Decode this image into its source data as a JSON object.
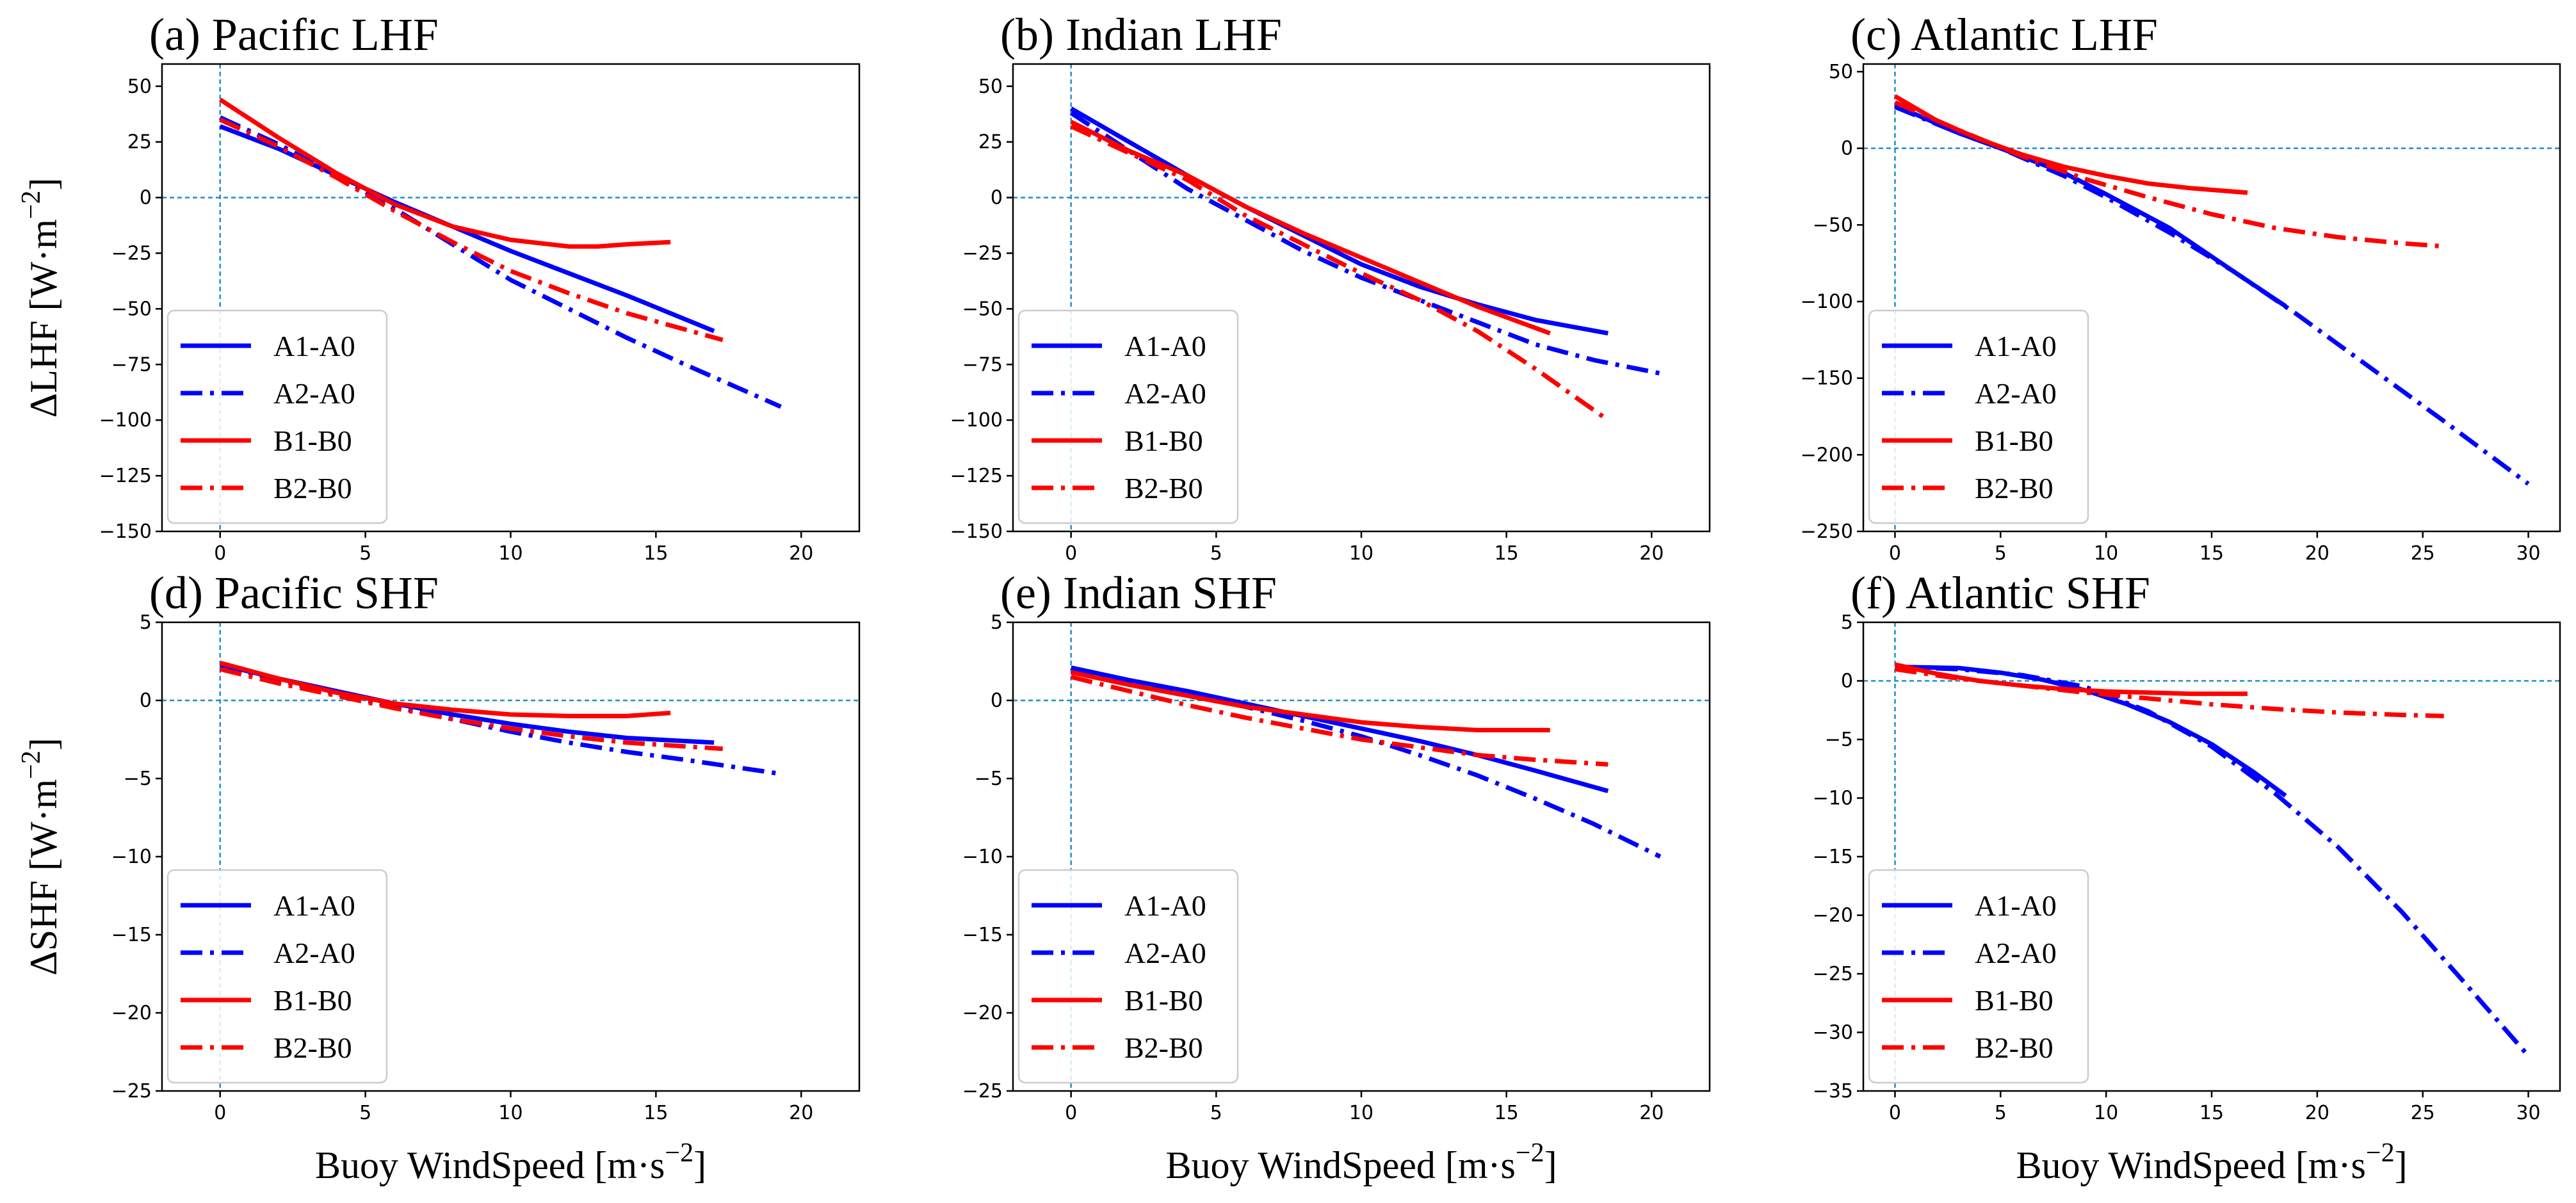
{
  "figure": {
    "xlabel_text": "Buoy WindSpeed [m·s",
    "xlabel_exp": "−2",
    "xlabel_close": "]"
  },
  "legend_labels": [
    "A1-A0",
    "A2-A0",
    "B1-B0",
    "B2-B0"
  ],
  "colors": {
    "blue": "#0000ff",
    "red": "#ff0000",
    "zero_line": "#1e90c8"
  },
  "chart_data": [
    {
      "type": "line",
      "panel": "a",
      "title": "(a) Pacific LHF",
      "ylabel": "ΔLHF [W·m",
      "ylabel_exp": "−2",
      "ylabel_close": "]",
      "xlim": [
        -2.0,
        22.0
      ],
      "ylim": [
        -150,
        60
      ],
      "xticks": [
        0,
        5,
        10,
        15,
        20
      ],
      "xtick_labels": [
        "0",
        "5",
        "10",
        "15",
        "20"
      ],
      "yticks": [
        50,
        25,
        0,
        -25,
        -50,
        -75,
        -100,
        -125,
        -150
      ],
      "ytick_labels": [
        "50",
        "25",
        "0",
        "−25",
        "−50",
        "−75",
        "−100",
        "−125",
        "−150"
      ],
      "series": [
        {
          "name": "A1-A0",
          "color": "blue",
          "style": "solid",
          "x": [
            0,
            2,
            4,
            6,
            8,
            10,
            12,
            14,
            17
          ],
          "y": [
            32,
            22,
            10,
            -2,
            -13,
            -24,
            -34,
            -44,
            -60
          ]
        },
        {
          "name": "A2-A0",
          "color": "blue",
          "style": "dashdot",
          "x": [
            0,
            2,
            4,
            6,
            8,
            10,
            12,
            14,
            16,
            19.3
          ],
          "y": [
            36,
            24,
            10,
            -5,
            -21,
            -37,
            -50,
            -63,
            -75,
            -94
          ]
        },
        {
          "name": "B1-B0",
          "color": "red",
          "style": "solid",
          "x": [
            0,
            2,
            4,
            6,
            8,
            10,
            12,
            13,
            14,
            15.5
          ],
          "y": [
            44,
            27,
            11,
            -3,
            -13,
            -19,
            -22,
            -22,
            -21,
            -20
          ]
        },
        {
          "name": "B2-B0",
          "color": "red",
          "style": "dashdot",
          "x": [
            0,
            2,
            4,
            6,
            8,
            10,
            12,
            14,
            17.3
          ],
          "y": [
            35,
            23,
            9,
            -6,
            -20,
            -33,
            -43,
            -52,
            -64
          ]
        }
      ]
    },
    {
      "type": "line",
      "panel": "b",
      "title": "(b) Indian LHF",
      "ylabel": "",
      "ylabel_exp": "",
      "ylabel_close": "",
      "xlim": [
        -2.0,
        22.0
      ],
      "ylim": [
        -150,
        60
      ],
      "xticks": [
        0,
        5,
        10,
        15,
        20
      ],
      "xtick_labels": [
        "0",
        "5",
        "10",
        "15",
        "20"
      ],
      "yticks": [
        50,
        25,
        0,
        -25,
        -50,
        -75,
        -100,
        -125,
        -150
      ],
      "ytick_labels": [
        "50",
        "25",
        "0",
        "−25",
        "−50",
        "−75",
        "−100",
        "−125",
        "−150"
      ],
      "series": [
        {
          "name": "A1-A0",
          "color": "blue",
          "style": "solid",
          "x": [
            0,
            2,
            4,
            6,
            8,
            10,
            12,
            14,
            16,
            18.5
          ],
          "y": [
            40,
            25,
            10,
            -4,
            -17,
            -30,
            -40,
            -48,
            -55,
            -61
          ]
        },
        {
          "name": "A2-A0",
          "color": "blue",
          "style": "dashdot",
          "x": [
            0,
            2,
            4,
            6,
            8,
            10,
            12,
            14,
            16,
            18,
            20.3
          ],
          "y": [
            38,
            21,
            4,
            -10,
            -24,
            -36,
            -46,
            -56,
            -66,
            -73,
            -79
          ]
        },
        {
          "name": "B1-B0",
          "color": "red",
          "style": "solid",
          "x": [
            0,
            2,
            4,
            6,
            8,
            10,
            12,
            14,
            16.5
          ],
          "y": [
            34,
            21,
            10,
            -4,
            -16,
            -27,
            -38,
            -49,
            -61
          ]
        },
        {
          "name": "B2-B0",
          "color": "red",
          "style": "dashdot",
          "x": [
            0,
            2,
            4,
            6,
            8,
            10,
            12,
            14,
            16,
            18.5
          ],
          "y": [
            32,
            20,
            8,
            -8,
            -21,
            -34,
            -46,
            -60,
            -77,
            -100
          ]
        }
      ]
    },
    {
      "type": "line",
      "panel": "c",
      "title": "(c) Atlantic LHF",
      "ylabel": "",
      "ylabel_exp": "",
      "ylabel_close": "",
      "xlim": [
        -1.5,
        31.5
      ],
      "ylim": [
        -250,
        55
      ],
      "xticks": [
        0,
        5,
        10,
        15,
        20,
        25,
        30
      ],
      "xtick_labels": [
        "0",
        "5",
        "10",
        "15",
        "20",
        "25",
        "30"
      ],
      "yticks": [
        50,
        0,
        -50,
        -100,
        -150,
        -200,
        -250
      ],
      "ytick_labels": [
        "50",
        "0",
        "−50",
        "−100",
        "−150",
        "−200",
        "−250"
      ],
      "series": [
        {
          "name": "A1-A0",
          "color": "blue",
          "style": "solid",
          "x": [
            0,
            3,
            5,
            8,
            10,
            13,
            16,
            18.5
          ],
          "y": [
            28,
            10,
            0,
            -16,
            -30,
            -52,
            -80,
            -103
          ]
        },
        {
          "name": "A2-A0",
          "color": "blue",
          "style": "dashdot",
          "x": [
            0,
            3,
            5,
            8,
            10,
            13,
            16,
            19,
            22,
            26,
            30
          ],
          "y": [
            27,
            10,
            0,
            -18,
            -32,
            -55,
            -80,
            -108,
            -138,
            -178,
            -219
          ]
        },
        {
          "name": "B1-B0",
          "color": "red",
          "style": "solid",
          "x": [
            0,
            2,
            4,
            6,
            8,
            10,
            12,
            14,
            16.7
          ],
          "y": [
            34,
            18,
            6,
            -4,
            -12,
            -18,
            -23,
            -26,
            -29
          ]
        },
        {
          "name": "B2-B0",
          "color": "red",
          "style": "dashdot",
          "x": [
            0,
            3,
            6,
            9,
            12,
            15,
            18,
            21,
            24,
            26
          ],
          "y": [
            30,
            12,
            -5,
            -20,
            -32,
            -43,
            -52,
            -58,
            -62,
            -64
          ]
        }
      ]
    },
    {
      "type": "line",
      "panel": "d",
      "title": "(d) Pacific SHF",
      "ylabel": "ΔSHF [W·m",
      "ylabel_exp": "−2",
      "ylabel_close": "]",
      "xlim": [
        -2.0,
        22.0
      ],
      "ylim": [
        -25,
        5
      ],
      "xticks": [
        0,
        5,
        10,
        15,
        20
      ],
      "xtick_labels": [
        "0",
        "5",
        "10",
        "15",
        "20"
      ],
      "yticks": [
        5,
        0,
        -5,
        -10,
        -15,
        -20,
        -25
      ],
      "ytick_labels": [
        "5",
        "0",
        "−5",
        "−10",
        "−15",
        "−20",
        "−25"
      ],
      "series": [
        {
          "name": "A1-A0",
          "color": "blue",
          "style": "solid",
          "x": [
            0,
            2,
            4,
            6,
            8,
            10,
            12,
            14,
            17
          ],
          "y": [
            2.3,
            1.4,
            0.6,
            -0.2,
            -0.9,
            -1.5,
            -2.0,
            -2.4,
            -2.7
          ]
        },
        {
          "name": "A2-A0",
          "color": "blue",
          "style": "dashdot",
          "x": [
            0,
            2,
            4,
            6,
            8,
            10,
            12,
            14,
            16,
            19.3
          ],
          "y": [
            2.2,
            1.3,
            0.4,
            -0.4,
            -1.2,
            -2.0,
            -2.7,
            -3.3,
            -3.8,
            -4.7
          ]
        },
        {
          "name": "B1-B0",
          "color": "red",
          "style": "solid",
          "x": [
            0,
            2,
            4,
            6,
            8,
            10,
            12,
            14,
            15.5
          ],
          "y": [
            2.4,
            1.4,
            0.5,
            -0.2,
            -0.6,
            -0.9,
            -1.0,
            -1.0,
            -0.8
          ]
        },
        {
          "name": "B2-B0",
          "color": "red",
          "style": "dashdot",
          "x": [
            0,
            2,
            4,
            6,
            8,
            10,
            12,
            14,
            17.3
          ],
          "y": [
            2.0,
            1.1,
            0.3,
            -0.5,
            -1.2,
            -1.8,
            -2.3,
            -2.7,
            -3.1
          ]
        }
      ]
    },
    {
      "type": "line",
      "panel": "e",
      "title": "(e) Indian SHF",
      "ylabel": "",
      "ylabel_exp": "",
      "ylabel_close": "",
      "xlim": [
        -2.0,
        22.0
      ],
      "ylim": [
        -25,
        5
      ],
      "xticks": [
        0,
        5,
        10,
        15,
        20
      ],
      "xtick_labels": [
        "0",
        "5",
        "10",
        "15",
        "20"
      ],
      "yticks": [
        5,
        0,
        -5,
        -10,
        -15,
        -20,
        -25
      ],
      "ytick_labels": [
        "5",
        "0",
        "−5",
        "−10",
        "−15",
        "−20",
        "−25"
      ],
      "series": [
        {
          "name": "A1-A0",
          "color": "blue",
          "style": "solid",
          "x": [
            0,
            2,
            4,
            6,
            8,
            10,
            12,
            14,
            16,
            18.5
          ],
          "y": [
            2.1,
            1.3,
            0.6,
            -0.2,
            -1.0,
            -1.8,
            -2.6,
            -3.5,
            -4.5,
            -5.8
          ]
        },
        {
          "name": "A2-A0",
          "color": "blue",
          "style": "dashdot",
          "x": [
            0,
            2,
            4,
            6,
            8,
            10,
            12,
            14,
            16,
            18,
            20.3
          ],
          "y": [
            1.8,
            1.1,
            0.4,
            -0.4,
            -1.3,
            -2.3,
            -3.5,
            -4.8,
            -6.3,
            -7.9,
            -10.0
          ]
        },
        {
          "name": "B1-B0",
          "color": "red",
          "style": "solid",
          "x": [
            0,
            2,
            4,
            6,
            8,
            10,
            12,
            14,
            16.5
          ],
          "y": [
            1.8,
            1.0,
            0.3,
            -0.4,
            -0.9,
            -1.4,
            -1.7,
            -1.9,
            -1.9
          ]
        },
        {
          "name": "B2-B0",
          "color": "red",
          "style": "dashdot",
          "x": [
            0,
            2,
            4,
            6,
            8,
            10,
            12,
            14,
            16,
            18.5
          ],
          "y": [
            1.5,
            0.6,
            -0.3,
            -1.1,
            -1.8,
            -2.5,
            -3.0,
            -3.5,
            -3.8,
            -4.1
          ]
        }
      ]
    },
    {
      "type": "line",
      "panel": "f",
      "title": "(f) Atlantic SHF",
      "ylabel": "",
      "ylabel_exp": "",
      "ylabel_close": "",
      "xlim": [
        -1.5,
        31.5
      ],
      "ylim": [
        -35,
        5
      ],
      "xticks": [
        0,
        5,
        10,
        15,
        20,
        25,
        30
      ],
      "xtick_labels": [
        "0",
        "5",
        "10",
        "15",
        "20",
        "25",
        "30"
      ],
      "yticks": [
        5,
        0,
        -5,
        -10,
        -15,
        -20,
        -25,
        -30,
        -35
      ],
      "ytick_labels": [
        "5",
        "0",
        "−5",
        "−10",
        "−15",
        "−20",
        "−25",
        "−30",
        "−35"
      ],
      "series": [
        {
          "name": "A1-A0",
          "color": "blue",
          "style": "solid",
          "x": [
            0,
            3,
            5,
            7,
            9,
            11,
            13,
            15,
            17,
            18.5
          ],
          "y": [
            1.2,
            1.1,
            0.7,
            0.1,
            -0.8,
            -2.0,
            -3.5,
            -5.4,
            -7.8,
            -9.8
          ]
        },
        {
          "name": "A2-A0",
          "color": "blue",
          "style": "dashdot",
          "x": [
            0,
            3,
            6,
            9,
            12,
            15,
            18,
            21,
            24,
            27,
            30
          ],
          "y": [
            1.2,
            1.0,
            0.5,
            -0.5,
            -2.6,
            -5.6,
            -9.6,
            -14.2,
            -19.7,
            -25.8,
            -32.0
          ]
        },
        {
          "name": "B1-B0",
          "color": "red",
          "style": "solid",
          "x": [
            0,
            2,
            4,
            6,
            8,
            10,
            12,
            14,
            16.7
          ],
          "y": [
            1.4,
            0.6,
            0.0,
            -0.4,
            -0.7,
            -0.9,
            -1.0,
            -1.1,
            -1.1
          ]
        },
        {
          "name": "B2-B0",
          "color": "red",
          "style": "dashdot",
          "x": [
            0,
            3,
            6,
            9,
            12,
            15,
            18,
            21,
            24,
            26
          ],
          "y": [
            1.0,
            0.2,
            -0.4,
            -1.0,
            -1.5,
            -2.0,
            -2.4,
            -2.7,
            -2.9,
            -3.0
          ]
        }
      ]
    }
  ]
}
